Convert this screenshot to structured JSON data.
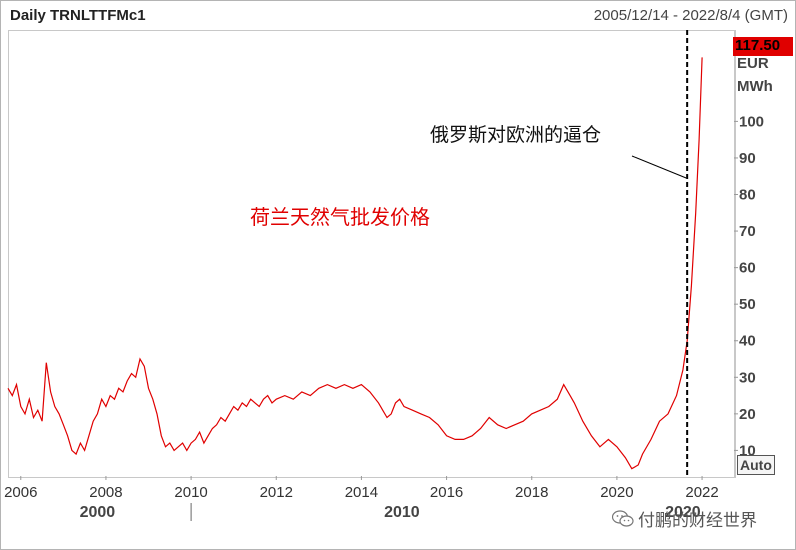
{
  "header": {
    "title": "Daily TRNLTTFMc1",
    "date_range": "2005/12/14 - 2022/8/4 (GMT)"
  },
  "annotations": {
    "event_label": "俄罗斯对欧洲的逼仓",
    "series_label": "荷兰天然气批发价格"
  },
  "right_axis": {
    "last_value": "117.50",
    "currency": "EUR",
    "unit": "MWh",
    "auto_button": "Auto",
    "last_value_color": "#e00000"
  },
  "watermark": {
    "text": "付鹏的财经世界",
    "icon": "wechat-icon"
  },
  "colors": {
    "series": "#e00000"
  },
  "chart_data": {
    "type": "line",
    "title": "Daily TRNLTTFMc1",
    "ylabel": "EUR MWh",
    "ylim": [
      3,
      125
    ],
    "xlim": [
      2005.7,
      2022.75
    ],
    "yticks": [
      "10",
      "20",
      "30",
      "40",
      "50",
      "60",
      "70",
      "80",
      "90",
      "100"
    ],
    "xticks": [
      "2006",
      "2008",
      "2010",
      "2012",
      "2014",
      "2016",
      "2018",
      "2020",
      "2022"
    ],
    "decade_labels": [
      "2000",
      "2010",
      "2020"
    ],
    "event_marker_x": 2021.65,
    "series": [
      {
        "values": [
          [
            2005.7,
            27
          ],
          [
            2005.8,
            25
          ],
          [
            2005.9,
            28
          ],
          [
            2006.0,
            22
          ],
          [
            2006.1,
            20
          ],
          [
            2006.2,
            24
          ],
          [
            2006.3,
            19
          ],
          [
            2006.4,
            21
          ],
          [
            2006.5,
            18
          ],
          [
            2006.6,
            34
          ],
          [
            2006.7,
            26
          ],
          [
            2006.8,
            22
          ],
          [
            2006.9,
            20
          ],
          [
            2007.0,
            17
          ],
          [
            2007.1,
            14
          ],
          [
            2007.2,
            10
          ],
          [
            2007.3,
            9
          ],
          [
            2007.4,
            12
          ],
          [
            2007.5,
            10
          ],
          [
            2007.6,
            14
          ],
          [
            2007.7,
            18
          ],
          [
            2007.8,
            20
          ],
          [
            2007.9,
            24
          ],
          [
            2008.0,
            22
          ],
          [
            2008.1,
            25
          ],
          [
            2008.2,
            24
          ],
          [
            2008.3,
            27
          ],
          [
            2008.4,
            26
          ],
          [
            2008.5,
            29
          ],
          [
            2008.6,
            31
          ],
          [
            2008.7,
            30
          ],
          [
            2008.8,
            35
          ],
          [
            2008.9,
            33
          ],
          [
            2009.0,
            27
          ],
          [
            2009.1,
            24
          ],
          [
            2009.2,
            20
          ],
          [
            2009.3,
            14
          ],
          [
            2009.4,
            11
          ],
          [
            2009.5,
            12
          ],
          [
            2009.6,
            10
          ],
          [
            2009.7,
            11
          ],
          [
            2009.8,
            12
          ],
          [
            2009.9,
            10
          ],
          [
            2010.0,
            12
          ],
          [
            2010.1,
            13
          ],
          [
            2010.2,
            15
          ],
          [
            2010.3,
            12
          ],
          [
            2010.4,
            14
          ],
          [
            2010.5,
            16
          ],
          [
            2010.6,
            17
          ],
          [
            2010.7,
            19
          ],
          [
            2010.8,
            18
          ],
          [
            2010.9,
            20
          ],
          [
            2011.0,
            22
          ],
          [
            2011.1,
            21
          ],
          [
            2011.2,
            23
          ],
          [
            2011.3,
            22
          ],
          [
            2011.4,
            24
          ],
          [
            2011.5,
            23
          ],
          [
            2011.6,
            22
          ],
          [
            2011.7,
            24
          ],
          [
            2011.8,
            25
          ],
          [
            2011.9,
            23
          ],
          [
            2012.0,
            24
          ],
          [
            2012.2,
            25
          ],
          [
            2012.4,
            24
          ],
          [
            2012.6,
            26
          ],
          [
            2012.8,
            25
          ],
          [
            2013.0,
            27
          ],
          [
            2013.2,
            28
          ],
          [
            2013.4,
            27
          ],
          [
            2013.6,
            28
          ],
          [
            2013.8,
            27
          ],
          [
            2014.0,
            28
          ],
          [
            2014.2,
            26
          ],
          [
            2014.4,
            23
          ],
          [
            2014.5,
            21
          ],
          [
            2014.6,
            19
          ],
          [
            2014.7,
            20
          ],
          [
            2014.8,
            23
          ],
          [
            2014.9,
            24
          ],
          [
            2015.0,
            22
          ],
          [
            2015.2,
            21
          ],
          [
            2015.4,
            20
          ],
          [
            2015.6,
            19
          ],
          [
            2015.8,
            17
          ],
          [
            2016.0,
            14
          ],
          [
            2016.2,
            13
          ],
          [
            2016.4,
            13
          ],
          [
            2016.6,
            14
          ],
          [
            2016.8,
            16
          ],
          [
            2017.0,
            19
          ],
          [
            2017.2,
            17
          ],
          [
            2017.4,
            16
          ],
          [
            2017.6,
            17
          ],
          [
            2017.8,
            18
          ],
          [
            2018.0,
            20
          ],
          [
            2018.2,
            21
          ],
          [
            2018.4,
            22
          ],
          [
            2018.6,
            24
          ],
          [
            2018.75,
            28
          ],
          [
            2018.9,
            25
          ],
          [
            2019.0,
            23
          ],
          [
            2019.2,
            18
          ],
          [
            2019.4,
            14
          ],
          [
            2019.6,
            11
          ],
          [
            2019.8,
            13
          ],
          [
            2020.0,
            11
          ],
          [
            2020.2,
            8
          ],
          [
            2020.35,
            5
          ],
          [
            2020.5,
            6
          ],
          [
            2020.6,
            9
          ],
          [
            2020.8,
            13
          ],
          [
            2021.0,
            18
          ],
          [
            2021.2,
            20
          ],
          [
            2021.4,
            25
          ],
          [
            2021.55,
            32
          ],
          [
            2021.65,
            40
          ],
          [
            2021.75,
            55
          ],
          [
            2021.85,
            75
          ],
          [
            2021.93,
            95
          ],
          [
            2022.0,
            117.5
          ]
        ]
      }
    ]
  }
}
